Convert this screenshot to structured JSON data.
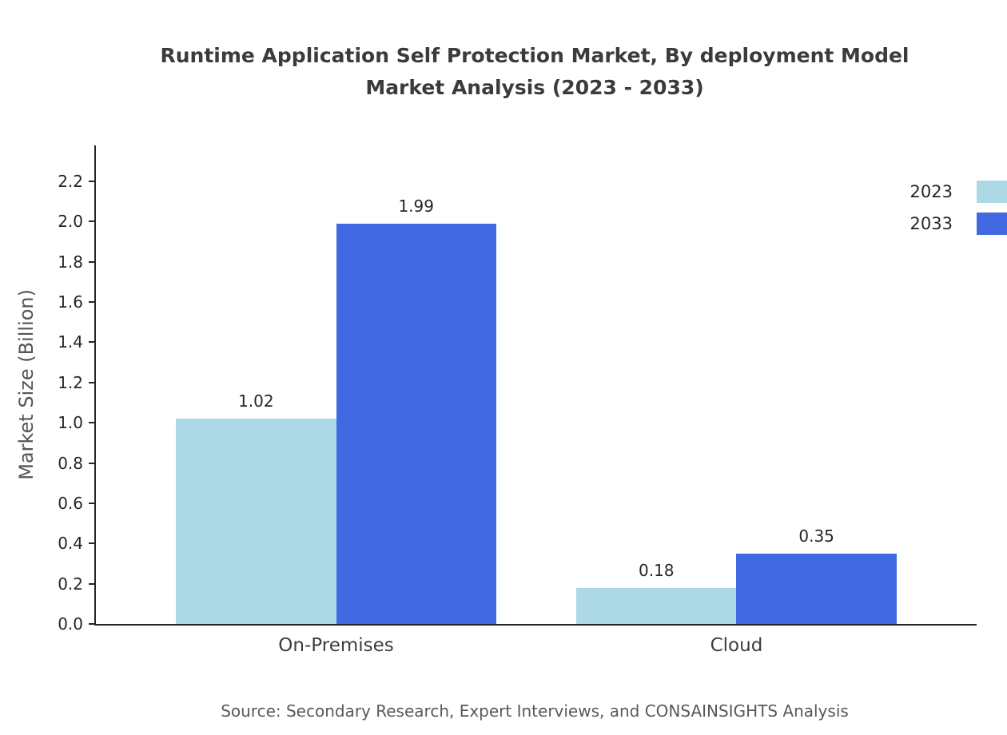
{
  "title": {
    "line1": "Runtime Application Self Protection Market, By deployment Model",
    "line2": "Market Analysis (2023 - 2033)"
  },
  "chart_data": {
    "type": "bar",
    "categories": [
      "On-Premises",
      "Cloud"
    ],
    "series": [
      {
        "name": "2023",
        "color": "#add8e6",
        "values": [
          1.02,
          0.18
        ]
      },
      {
        "name": "2033",
        "color": "#4169e1",
        "values": [
          1.99,
          0.35
        ]
      }
    ],
    "ylabel": "Market Size (Billion)",
    "ylim": [
      0.0,
      2.2
    ],
    "ytick_step": 0.2,
    "grid": false,
    "legend_position": "top-right"
  },
  "footer": {
    "source": "Source: Secondary Research, Expert Interviews, and CONSAINSIGHTS Analysis"
  }
}
